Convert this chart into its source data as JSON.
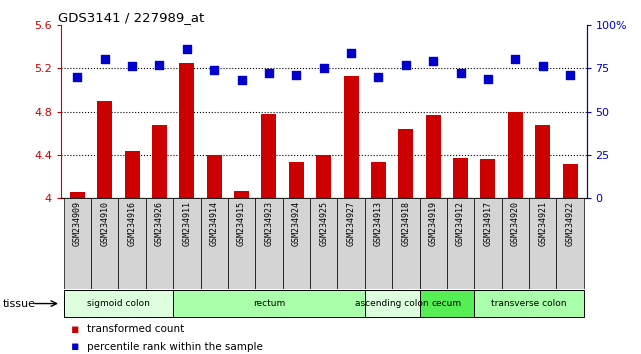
{
  "title": "GDS3141 / 227989_at",
  "samples": [
    "GSM234909",
    "GSM234910",
    "GSM234916",
    "GSM234926",
    "GSM234911",
    "GSM234914",
    "GSM234915",
    "GSM234923",
    "GSM234924",
    "GSM234925",
    "GSM234927",
    "GSM234913",
    "GSM234918",
    "GSM234919",
    "GSM234912",
    "GSM234917",
    "GSM234920",
    "GSM234921",
    "GSM234922"
  ],
  "bar_values": [
    4.06,
    4.9,
    4.44,
    4.68,
    5.25,
    4.4,
    4.07,
    4.78,
    4.33,
    4.4,
    5.13,
    4.33,
    4.64,
    4.77,
    4.37,
    4.36,
    4.8,
    4.68,
    4.32
  ],
  "dot_values": [
    70,
    80,
    76,
    77,
    86,
    74,
    68,
    72,
    71,
    75,
    84,
    70,
    77,
    79,
    72,
    69,
    80,
    76,
    71
  ],
  "bar_color": "#cc0000",
  "dot_color": "#0000cc",
  "ylim_left": [
    4.0,
    5.6
  ],
  "ylim_right": [
    0,
    100
  ],
  "yticks_left": [
    4.0,
    4.4,
    4.8,
    5.2,
    5.6
  ],
  "ytick_labels_left": [
    "4",
    "4.4",
    "4.8",
    "5.2",
    "5.6"
  ],
  "yticks_right": [
    0,
    25,
    50,
    75,
    100
  ],
  "ytick_labels_right": [
    "0",
    "25",
    "50",
    "75",
    "100%"
  ],
  "hlines": [
    4.4,
    4.8,
    5.2
  ],
  "tissue_groups": [
    {
      "label": "sigmoid colon",
      "start": 0,
      "end": 4,
      "color": "#ddffdd"
    },
    {
      "label": "rectum",
      "start": 4,
      "end": 11,
      "color": "#aaffaa"
    },
    {
      "label": "ascending colon",
      "start": 11,
      "end": 13,
      "color": "#ddffdd"
    },
    {
      "label": "cecum",
      "start": 13,
      "end": 15,
      "color": "#55ee55"
    },
    {
      "label": "transverse colon",
      "start": 15,
      "end": 19,
      "color": "#aaffaa"
    }
  ],
  "legend_bar_label": "transformed count",
  "legend_dot_label": "percentile rank within the sample",
  "tissue_label": "tissue",
  "bar_width": 0.55,
  "dot_size": 35
}
